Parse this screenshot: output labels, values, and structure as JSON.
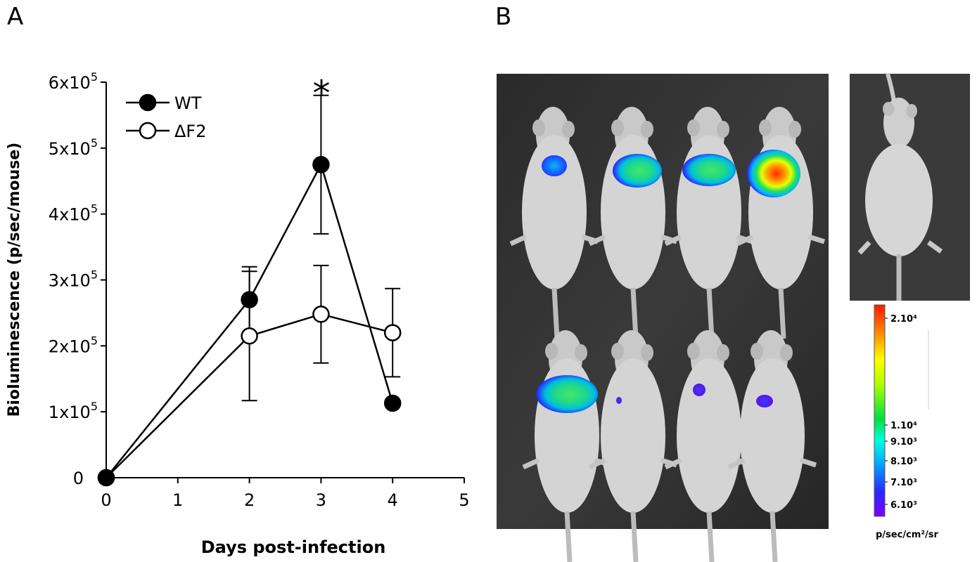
{
  "panels": {
    "a_label": "A",
    "b_label": "B"
  },
  "chart_data": {
    "type": "line",
    "xlabel": "Days post-infection",
    "ylabel": "Bioluminescence (p/sec/mouse)",
    "xlim": [
      0,
      5
    ],
    "ylim": [
      0,
      600000
    ],
    "x_ticks": [
      "0",
      "1",
      "2",
      "3",
      "4",
      "5"
    ],
    "y_ticks": [
      {
        "value": 0,
        "mantissa": "0",
        "exp": ""
      },
      {
        "value": 100000,
        "mantissa": "1x10",
        "exp": "5"
      },
      {
        "value": 200000,
        "mantissa": "2x10",
        "exp": "5"
      },
      {
        "value": 300000,
        "mantissa": "3x10",
        "exp": "5"
      },
      {
        "value": 400000,
        "mantissa": "4x10",
        "exp": "5"
      },
      {
        "value": 500000,
        "mantissa": "5x10",
        "exp": "5"
      },
      {
        "value": 600000,
        "mantissa": "6x10",
        "exp": "5"
      }
    ],
    "grid": false,
    "legend_position": "top-left",
    "series": [
      {
        "name": "WT",
        "marker": "filled-circle",
        "x": [
          0,
          2,
          3,
          4
        ],
        "y": [
          0,
          270000,
          475000,
          113000
        ],
        "err": [
          0,
          50000,
          105000,
          0
        ]
      },
      {
        "name": "ΔF2",
        "marker": "open-circle",
        "x": [
          0,
          2,
          3,
          4
        ],
        "y": [
          0,
          215000,
          248000,
          220000
        ],
        "err": [
          0,
          98000,
          74000,
          67000
        ]
      }
    ],
    "annotations": [
      {
        "text": "*",
        "x": 3,
        "y": 600000
      }
    ]
  },
  "imaging": {
    "colorbar_ticks": [
      "2.10⁴",
      "1.10⁴",
      "9.10³",
      "8.10³",
      "7.10³",
      "6.10³"
    ],
    "colorbar_unit": "p/sec/cm²/sr"
  }
}
